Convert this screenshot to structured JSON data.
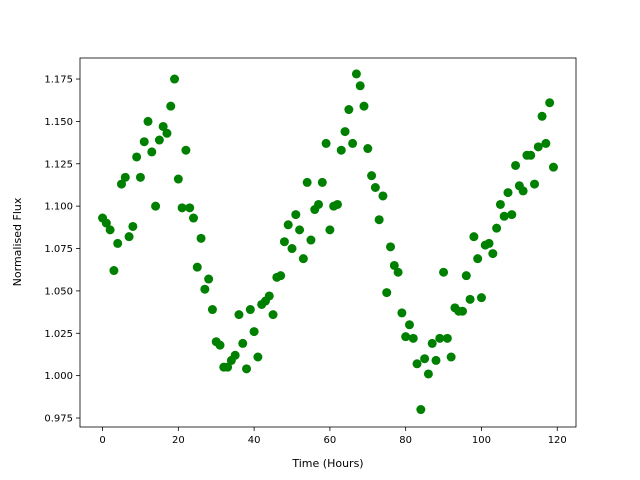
{
  "chart_data": {
    "type": "scatter",
    "x_label": "Time (Hours)",
    "y_label": "Normalised Flux",
    "color": "#008000",
    "x": [
      0,
      1,
      2,
      3,
      4,
      5,
      6,
      7,
      8,
      9,
      10,
      11,
      12,
      13,
      14,
      15,
      16,
      17,
      18,
      19,
      20,
      21,
      22,
      23,
      24,
      25,
      26,
      27,
      28,
      29,
      30,
      31,
      32,
      33,
      34,
      35,
      36,
      37,
      38,
      39,
      40,
      41,
      42,
      43,
      44,
      45,
      46,
      47,
      48,
      49,
      50,
      51,
      52,
      53,
      54,
      55,
      56,
      57,
      58,
      59,
      60,
      61,
      62,
      63,
      64,
      65,
      66,
      67,
      68,
      69,
      70,
      71,
      72,
      73,
      74,
      75,
      76,
      77,
      78,
      79,
      80,
      81,
      82,
      83,
      84,
      85,
      86,
      87,
      88,
      89,
      90,
      91,
      92,
      93,
      94,
      95,
      96,
      97,
      98,
      99,
      100,
      101,
      102,
      103,
      104,
      105,
      106,
      107,
      108,
      109,
      110,
      111,
      112,
      113,
      114,
      115,
      116,
      117,
      118,
      119
    ],
    "values": [
      1.093,
      1.09,
      1.086,
      1.062,
      1.078,
      1.113,
      1.117,
      1.082,
      1.088,
      1.129,
      1.117,
      1.138,
      1.15,
      1.132,
      1.1,
      1.139,
      1.147,
      1.143,
      1.159,
      1.175,
      1.116,
      1.099,
      1.133,
      1.099,
      1.093,
      1.064,
      1.081,
      1.051,
      1.057,
      1.039,
      1.02,
      1.018,
      1.005,
      1.005,
      1.009,
      1.012,
      1.036,
      1.019,
      1.004,
      1.039,
      1.026,
      1.011,
      1.042,
      1.044,
      1.047,
      1.036,
      1.058,
      1.059,
      1.079,
      1.089,
      1.075,
      1.095,
      1.086,
      1.069,
      1.114,
      1.08,
      1.098,
      1.101,
      1.114,
      1.137,
      1.086,
      1.1,
      1.101,
      1.133,
      1.144,
      1.157,
      1.137,
      1.178,
      1.171,
      1.159,
      1.134,
      1.118,
      1.111,
      1.092,
      1.106,
      1.049,
      1.076,
      1.065,
      1.061,
      1.037,
      1.023,
      1.03,
      1.022,
      1.007,
      0.98,
      1.01,
      1.001,
      1.019,
      1.009,
      1.022,
      1.061,
      1.022,
      1.011,
      1.04,
      1.038,
      1.038,
      1.059,
      1.045,
      1.082,
      1.069,
      1.046,
      1.077,
      1.078,
      1.072,
      1.087,
      1.101,
      1.094,
      1.108,
      1.095,
      1.124,
      1.112,
      1.109,
      1.13,
      1.13,
      1.113,
      1.135,
      1.153,
      1.137,
      1.161,
      1.123
    ],
    "xlim": [
      -5.95,
      124.95
    ],
    "ylim": [
      0.9697,
      1.1874
    ],
    "xticks": [
      0,
      20,
      40,
      60,
      80,
      100,
      120
    ],
    "yticks": [
      0.975,
      {
        "value": 1.0,
        "label": "1.000"
      },
      1.025,
      {
        "value": 1.05,
        "label": "1.050"
      },
      1.075,
      {
        "value": 1.1,
        "label": "1.100"
      },
      1.125,
      {
        "value": 1.15,
        "label": "1.150"
      },
      1.175
    ]
  }
}
